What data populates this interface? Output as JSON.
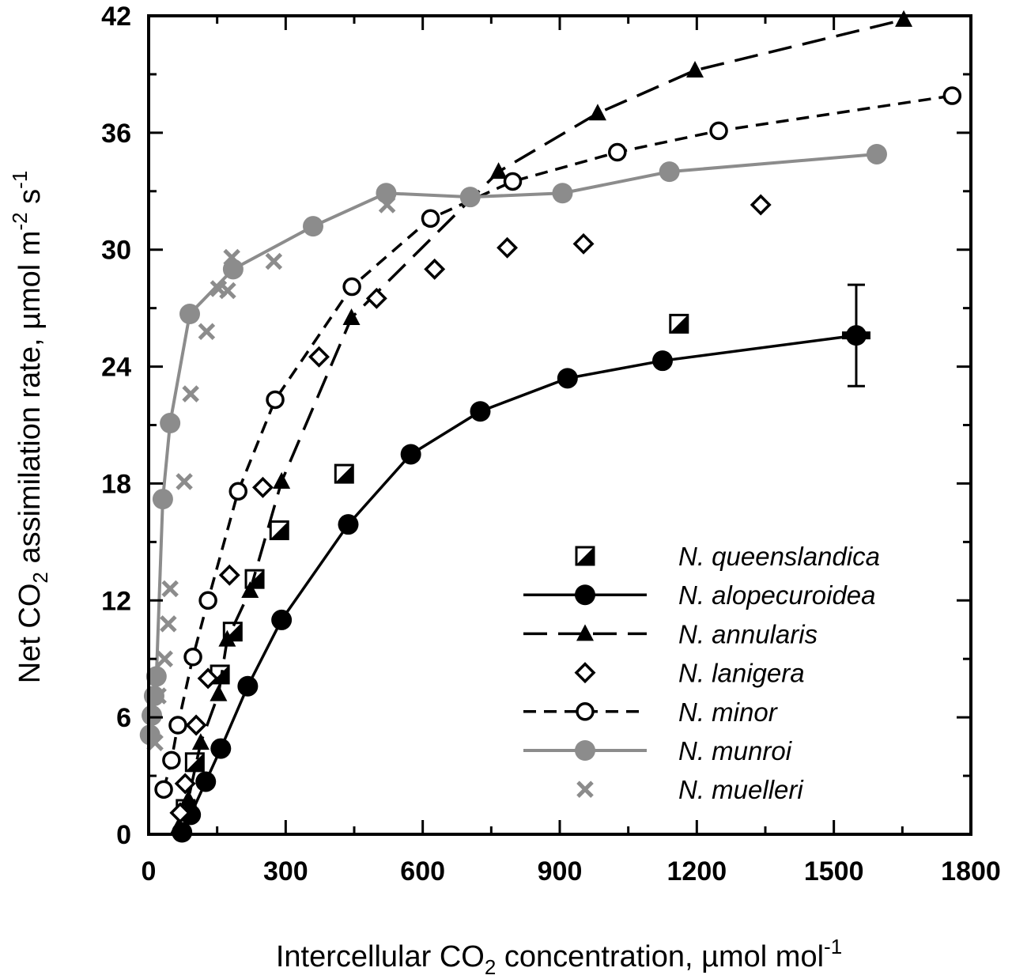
{
  "chart_data": {
    "type": "scatter",
    "xlabel_parts": [
      "Intercellular CO",
      "2",
      " concentration, µmol mol",
      "-1"
    ],
    "ylabel_parts": [
      "Net CO",
      "2",
      " assimilation rate, µmol m",
      "-2",
      " s",
      "-1"
    ],
    "xlim": [
      0,
      1800
    ],
    "ylim": [
      0,
      42
    ],
    "xticks": [
      0,
      300,
      600,
      900,
      1200,
      1500,
      1800
    ],
    "yticks": [
      0,
      6,
      12,
      18,
      24,
      30,
      36,
      42
    ],
    "grid": false,
    "legend_position": "bottom-right",
    "series": [
      {
        "name": "N. queenslandica",
        "marker": "half-filled-square",
        "line": "none",
        "color": "#000000",
        "x": [
          81,
          101,
          156,
          184,
          232,
          286,
          428,
          1161
        ],
        "y": [
          1.3,
          3.7,
          8.2,
          10.4,
          13.1,
          15.6,
          18.5,
          26.2
        ]
      },
      {
        "name": "N. alopecuroidea",
        "marker": "filled-circle",
        "line": "solid",
        "color": "#000000",
        "x": [
          73,
          92,
          125,
          158,
          217,
          291,
          437,
          574,
          726,
          917,
          1125,
          1549
        ],
        "y": [
          0.1,
          1.0,
          2.7,
          4.4,
          7.6,
          11.0,
          15.9,
          19.5,
          21.7,
          23.4,
          24.3,
          25.6
        ],
        "error_bar": {
          "x": 1549,
          "y_low": 23.0,
          "y_high": 28.2
        }
      },
      {
        "name": "N. annularis",
        "marker": "filled-triangle",
        "line": "long-dash",
        "color": "#000000",
        "x": [
          66,
          87,
          114,
          153,
          172,
          222,
          291,
          444,
          766,
          983,
          1196,
          1653
        ],
        "y": [
          0.4,
          1.8,
          4.7,
          7.2,
          10.0,
          12.5,
          18.1,
          26.5,
          34.0,
          37.0,
          39.2,
          41.8
        ]
      },
      {
        "name": "N. lanigera",
        "marker": "open-diamond",
        "line": "none",
        "color": "#000000",
        "x": [
          69,
          80,
          104,
          130,
          177,
          250,
          373,
          499,
          626,
          785,
          952,
          1340
        ],
        "y": [
          1.1,
          2.6,
          5.6,
          8.0,
          13.3,
          17.8,
          24.5,
          27.5,
          29.0,
          30.1,
          30.3,
          32.3
        ]
      },
      {
        "name": "N. minor",
        "marker": "open-circle",
        "line": "short-dash",
        "color": "#000000",
        "x": [
          33,
          50,
          64,
          97,
          130,
          196,
          277,
          445,
          617,
          797,
          1026,
          1248,
          1759
        ],
        "y": [
          2.3,
          3.8,
          5.6,
          9.1,
          12.0,
          17.6,
          22.3,
          28.1,
          31.6,
          33.5,
          35.0,
          36.1,
          37.9
        ]
      },
      {
        "name": "N. munroi",
        "marker": "filled-circle",
        "line": "solid",
        "color": "#8c8c8c",
        "x": [
          3,
          7,
          12,
          17,
          31,
          47,
          90,
          185,
          360,
          520,
          704,
          906,
          1140,
          1594
        ],
        "y": [
          5.1,
          6.1,
          7.1,
          8.1,
          17.2,
          21.1,
          26.7,
          29.0,
          31.2,
          32.9,
          32.7,
          32.9,
          34.0,
          34.9
        ]
      },
      {
        "name": "N. muelleri",
        "marker": "cross",
        "line": "none",
        "color": "#8c8c8c",
        "x": [
          14,
          21,
          35,
          43,
          47,
          78,
          92,
          127,
          153,
          173,
          182,
          274,
          522
        ],
        "y": [
          4.7,
          7.1,
          9.0,
          10.8,
          12.6,
          18.1,
          22.6,
          25.8,
          28.0,
          27.9,
          29.6,
          29.4,
          32.3
        ]
      }
    ]
  }
}
